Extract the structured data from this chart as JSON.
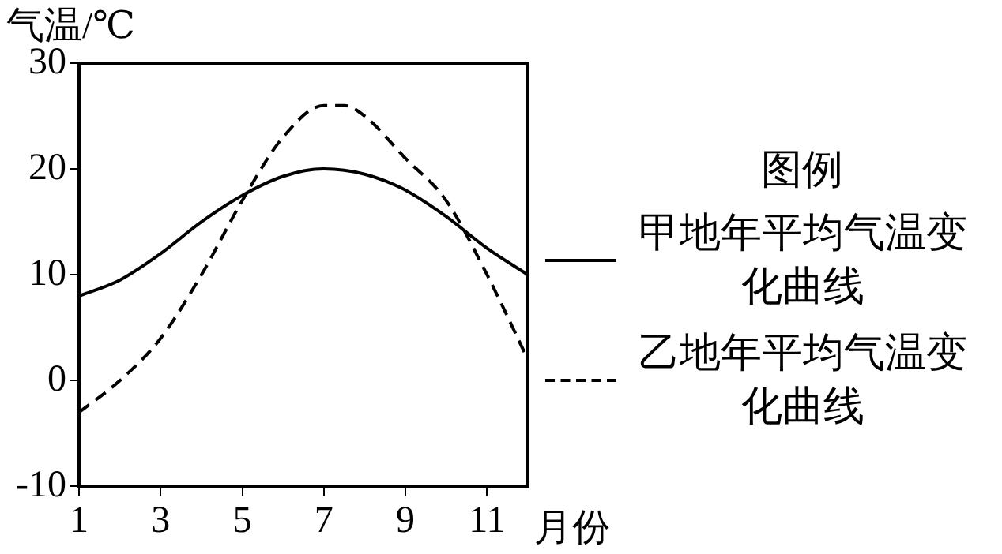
{
  "chart_data": {
    "type": "line",
    "xlabel": "月份",
    "ylabel": "气温/℃",
    "legend_title": "图例",
    "legend": "right",
    "grid": false,
    "marker": "none",
    "xlim": [
      1,
      12
    ],
    "xticks": [
      1,
      3,
      5,
      7,
      9,
      11
    ],
    "ylim": [
      -10,
      30
    ],
    "yticks": [
      -10,
      0,
      10,
      20,
      30
    ],
    "series": [
      {
        "name": "甲地年平均气温变化曲线",
        "color": "#000000",
        "line_style": "solid",
        "x": [
          1,
          2,
          3,
          4,
          5,
          6,
          7,
          8,
          9,
          10,
          11,
          12
        ],
        "values": [
          8,
          9.5,
          12,
          15,
          17.5,
          19.3,
          20,
          19.5,
          18,
          15.5,
          12.5,
          10
        ]
      },
      {
        "name": "乙地年平均气温变化曲线",
        "color": "#000000",
        "line_style": "dashed",
        "x": [
          1,
          2,
          3,
          4,
          5,
          6,
          7,
          7.5,
          8,
          9,
          10,
          11,
          12
        ],
        "values": [
          -3,
          0,
          4,
          10,
          17,
          23,
          26,
          26,
          25,
          21,
          17,
          10,
          2
        ]
      }
    ]
  }
}
